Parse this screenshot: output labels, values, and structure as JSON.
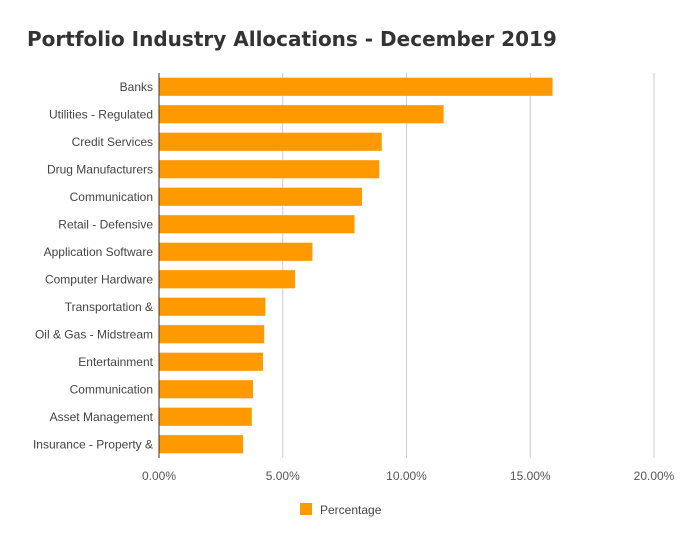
{
  "chart_data": {
    "type": "bar",
    "orientation": "horizontal",
    "title": "Portfolio Industry Allocations - December 2019",
    "categories": [
      "Banks",
      "Utilities - Regulated",
      "Credit Services",
      "Drug Manufacturers",
      "Communication",
      "Retail - Defensive",
      "Application Software",
      "Computer Hardware",
      "Transportation &",
      "Oil & Gas - Midstream",
      "Entertainment",
      "Communication",
      "Asset Management",
      "Insurance - Property &"
    ],
    "series": [
      {
        "name": "Percentage",
        "color": "#ff9900",
        "values": [
          15.9,
          11.5,
          9.0,
          8.9,
          8.2,
          7.9,
          6.2,
          5.5,
          4.3,
          4.25,
          4.2,
          3.8,
          3.75,
          3.4
        ]
      }
    ],
    "xlim": [
      0,
      20
    ],
    "xticks": [
      "0.00%",
      "5.00%",
      "10.00%",
      "15.00%",
      "20.00%"
    ],
    "grid": "vertical",
    "legend_position": "bottom"
  }
}
